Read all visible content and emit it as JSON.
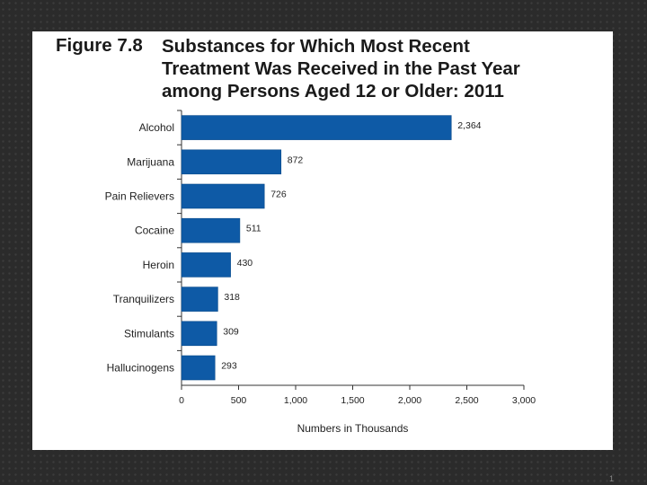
{
  "slide": {
    "figure_label": "Figure 7.8",
    "title_lines": [
      "Substances for Which Most Recent",
      "Treatment Was Received in the Past Year",
      "among Persons Aged 12 or Older: 2011"
    ],
    "page_number": "1"
  },
  "colors": {
    "bar": "#0e5aa6",
    "bar_edge": "#0a4c8c",
    "background": "#ffffff"
  },
  "chart_data": {
    "type": "bar",
    "orientation": "horizontal",
    "categories": [
      "Alcohol",
      "Marijuana",
      "Pain Relievers",
      "Cocaine",
      "Heroin",
      "Tranquilizers",
      "Stimulants",
      "Hallucinogens"
    ],
    "values": [
      2364,
      872,
      726,
      511,
      430,
      318,
      309,
      293
    ],
    "value_labels": [
      "2,364",
      "872",
      "726",
      "511",
      "430",
      "318",
      "309",
      "293"
    ],
    "xlabel": "Numbers in Thousands",
    "xlim": [
      0,
      3000
    ],
    "xticks": [
      0,
      500,
      1000,
      1500,
      2000,
      2500,
      3000
    ],
    "xtick_labels": [
      "0",
      "500",
      "1,000",
      "1,500",
      "2,000",
      "2,500",
      "3,000"
    ],
    "grid": false,
    "legend": "none"
  }
}
